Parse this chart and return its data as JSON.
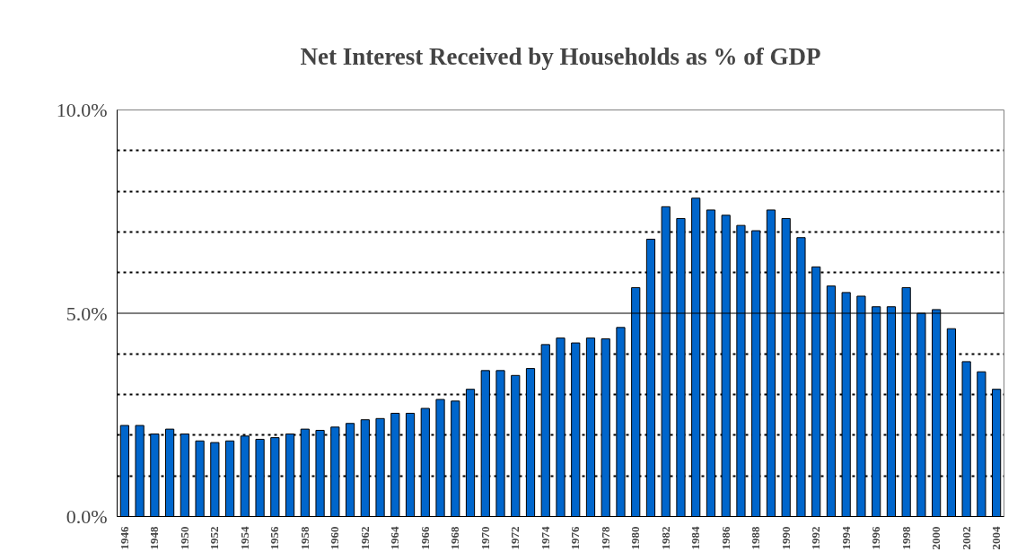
{
  "chart_data": {
    "type": "bar",
    "title": "Net Interest Received by Households as % of GDP",
    "categories": [
      "1946",
      null,
      "1948",
      null,
      "1950",
      null,
      "1952",
      null,
      "1954",
      null,
      "1956",
      null,
      "1958",
      null,
      "1960",
      null,
      "1962",
      null,
      "1964",
      null,
      "1966",
      null,
      "1968",
      null,
      "1970",
      null,
      "1972",
      null,
      "1974",
      null,
      "1976",
      null,
      "1978",
      null,
      "1980",
      null,
      "1982",
      null,
      "1984",
      null,
      "1986",
      null,
      "1988",
      null,
      "1990",
      null,
      "1992",
      null,
      "1994",
      null,
      "1996",
      null,
      "1998",
      null,
      "2000",
      null,
      "2002",
      null,
      "2004"
    ],
    "values": [
      2.24,
      2.24,
      2.03,
      2.15,
      2.03,
      1.86,
      1.82,
      1.86,
      1.98,
      1.9,
      1.94,
      2.03,
      2.15,
      2.12,
      2.2,
      2.29,
      2.38,
      2.41,
      2.54,
      2.54,
      2.66,
      2.88,
      2.84,
      3.13,
      3.59,
      3.59,
      3.47,
      3.64,
      4.23,
      4.39,
      4.27,
      4.39,
      4.37,
      4.65,
      5.63,
      6.82,
      7.62,
      7.33,
      7.83,
      7.54,
      7.41,
      7.16,
      7.03,
      7.54,
      7.33,
      6.86,
      6.14,
      5.67,
      5.51,
      5.42,
      5.16,
      5.16,
      5.63,
      5.0,
      5.09,
      4.62,
      3.81,
      3.56,
      3.13
    ],
    "color": "#0066cc",
    "ylim": [
      0,
      10
    ],
    "yticks": [
      {
        "value": 0,
        "label": "0.0%"
      },
      {
        "value": 1,
        "label": null
      },
      {
        "value": 2,
        "label": null
      },
      {
        "value": 3,
        "label": null
      },
      {
        "value": 4,
        "label": null
      },
      {
        "value": 5,
        "label": "5.0%"
      },
      {
        "value": 6,
        "label": null
      },
      {
        "value": 7,
        "label": null
      },
      {
        "value": 8,
        "label": null
      },
      {
        "value": 9,
        "label": null
      },
      {
        "value": 10,
        "label": "10.0%"
      }
    ],
    "ref_lines": [
      {
        "axis": "y",
        "value": 5,
        "color": "#000000",
        "line_style": "solid"
      }
    ],
    "grid": "y"
  }
}
